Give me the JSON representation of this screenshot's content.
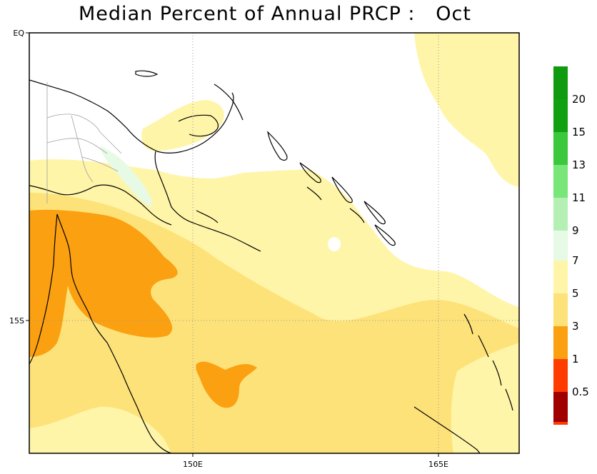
{
  "title": "Median Percent of Annual PRCP :   Oct",
  "axes": {
    "y_ticks": [
      {
        "label": "EQ",
        "lat": 0
      },
      {
        "label": "15S",
        "lat": -15
      }
    ],
    "x_ticks": [
      {
        "label": "150E",
        "lon": 150
      },
      {
        "label": "165E",
        "lon": 165
      }
    ]
  },
  "colorbar": {
    "upper": [
      {
        "label": "20",
        "color": "#10a010"
      },
      {
        "label": "15",
        "color": "#3cc83c"
      },
      {
        "label": "13",
        "color": "#78e678"
      },
      {
        "label": "11",
        "color": "#b4f0b4"
      },
      {
        "label": "9",
        "color": "#e6fae6"
      }
    ],
    "upper_top_color": "#109a10",
    "lower": [
      {
        "label": "7",
        "color": "#fff5a8"
      },
      {
        "label": "5",
        "color": "#fde27a"
      },
      {
        "label": "3",
        "color": "#fba010"
      },
      {
        "label": "1",
        "color": "#ff3c00"
      },
      {
        "label": "0.5",
        "color": "#a00000"
      }
    ],
    "lower_bottom_color": "#a00000"
  },
  "map_colors": {
    "light_yellow": "#fff5a8",
    "yellow": "#fde27a",
    "orange": "#fba010",
    "light_green": "#e6fae6"
  }
}
